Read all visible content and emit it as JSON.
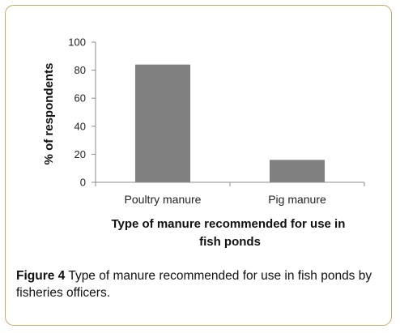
{
  "caption": {
    "figure_label": "Figure 4",
    "text": "Type of manure recommended for use in fish ponds by fisheries officers."
  },
  "chart_data": {
    "type": "bar",
    "categories": [
      "Poultry manure",
      "Pig manure"
    ],
    "values": [
      84,
      16
    ],
    "xlabel_lines": [
      "Type of manure recommended for use in",
      "fish ponds"
    ],
    "ylabel": "% of respondents",
    "ylim": [
      0,
      100
    ],
    "yticks": [
      0,
      20,
      40,
      60,
      80,
      100
    ],
    "grid": false,
    "legend": "none",
    "bar_color": "#808080"
  }
}
